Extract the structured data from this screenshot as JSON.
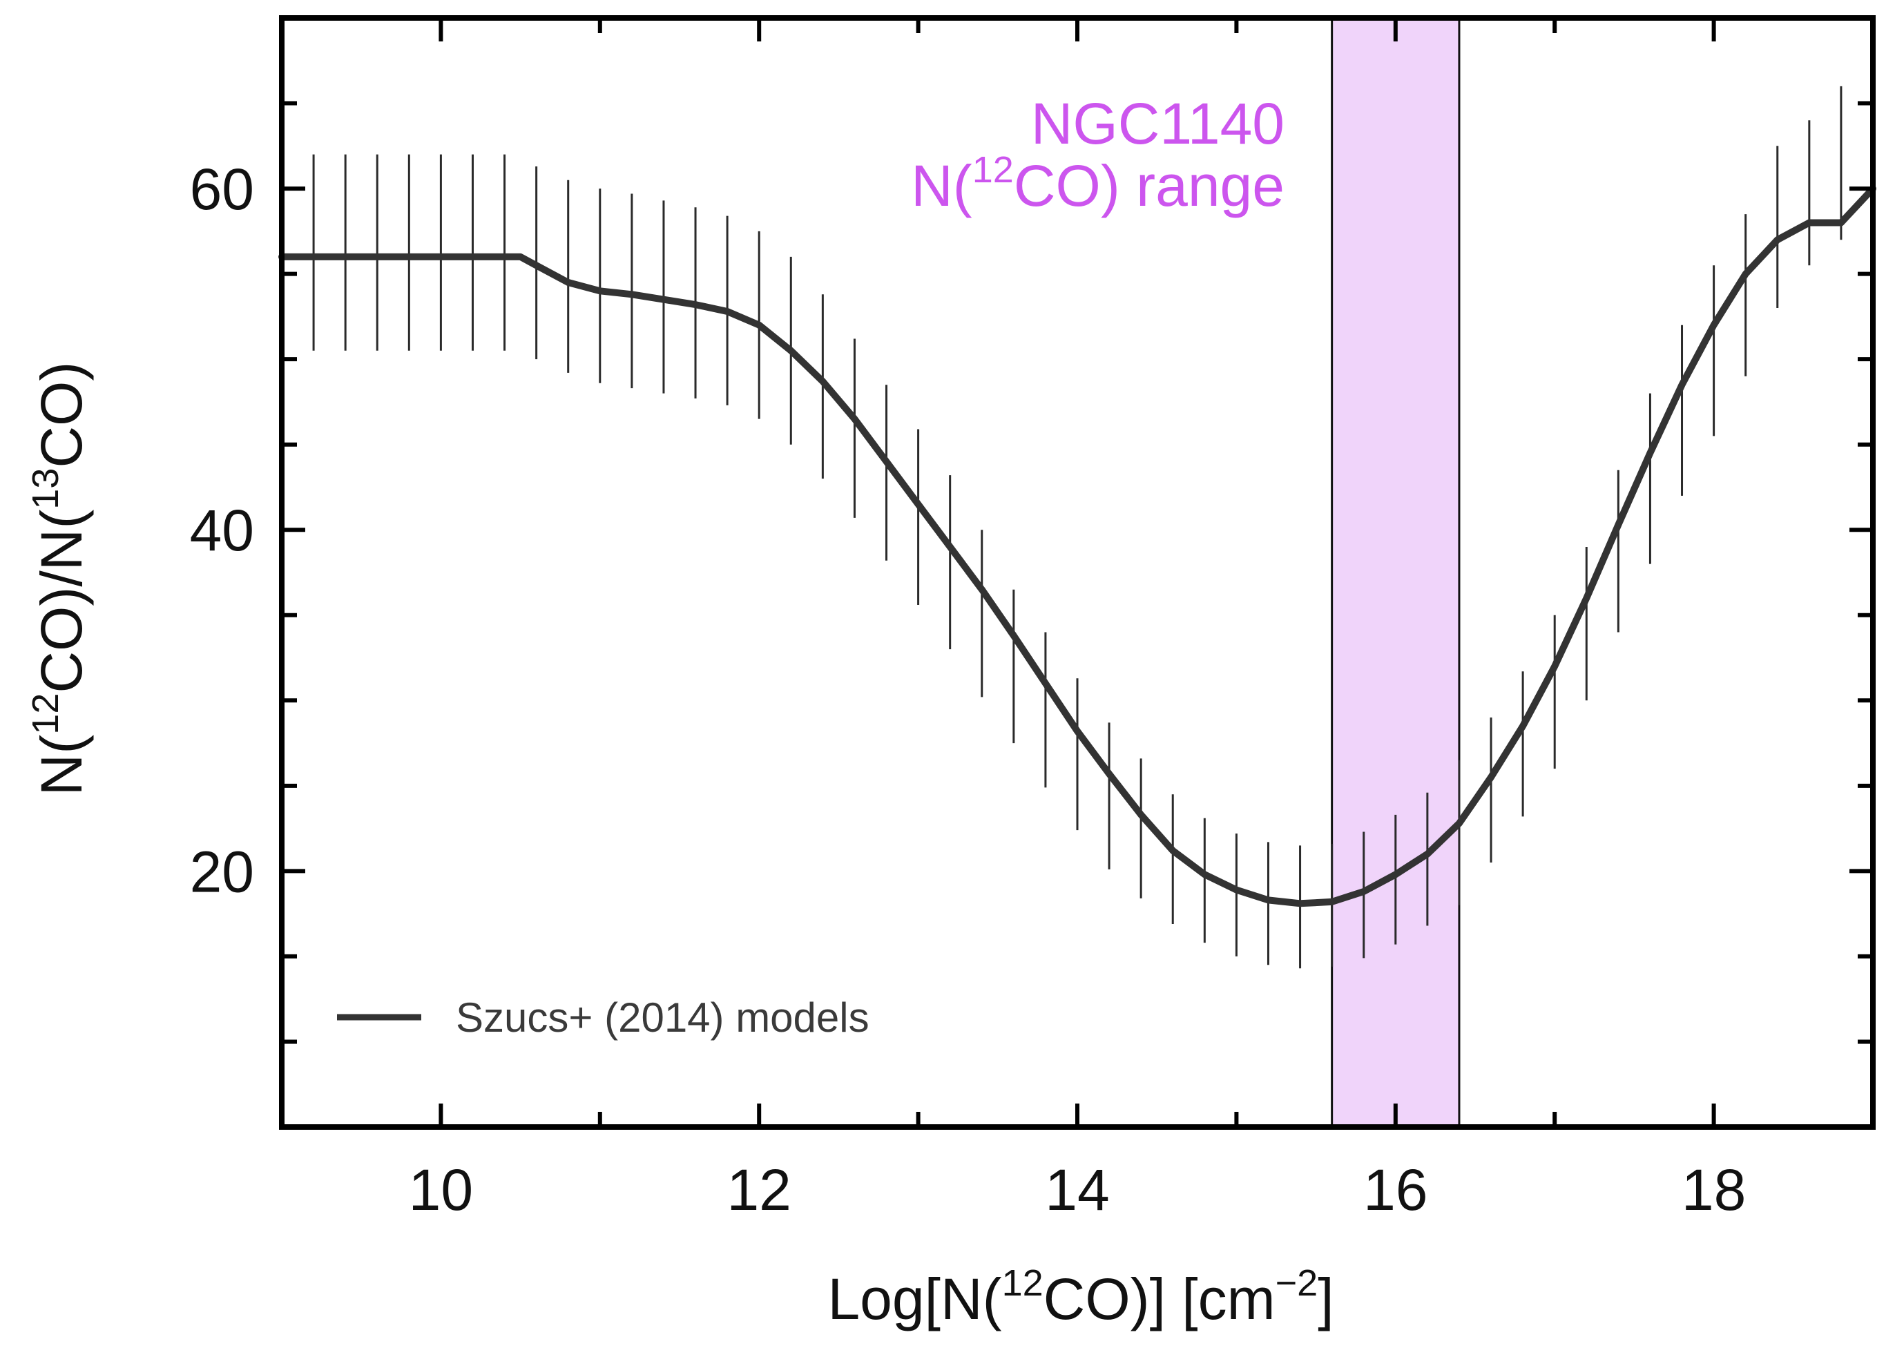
{
  "chart_data": {
    "type": "line",
    "xlabel_parts": [
      "Log[N(",
      "12",
      "CO)] [cm",
      "−2",
      "]"
    ],
    "ylabel_parts": [
      "N(",
      "12",
      "CO)/N(",
      "13",
      "CO)"
    ],
    "xlim": [
      9.0,
      19.0
    ],
    "ylim": [
      5.0,
      70.0
    ],
    "x_ticks": [
      10,
      12,
      14,
      16,
      18
    ],
    "x_tick_labels": [
      "10",
      "12",
      "14",
      "16",
      "18"
    ],
    "y_ticks": [
      20,
      40,
      60
    ],
    "y_tick_labels": [
      "20",
      "40",
      "60"
    ],
    "grid": false,
    "legend_position": "bottom-left",
    "legend_label": "Szucs+ (2014) models",
    "shaded_region": {
      "label_line1": "NGC1140",
      "label_line2_parts": [
        "N(",
        "12",
        "CO) range"
      ],
      "xmin": 15.6,
      "xmax": 16.4,
      "fill_color": "#f0d4fa",
      "label_color": "#cc55ee"
    },
    "series": [
      {
        "name": "Szucs+ (2014) models",
        "color": "#333333",
        "x": [
          9.0,
          9.2,
          9.5,
          10.0,
          10.5,
          10.6,
          10.8,
          11.0,
          11.2,
          11.4,
          11.6,
          11.8,
          12.0,
          12.2,
          12.4,
          12.6,
          12.8,
          13.0,
          13.2,
          13.4,
          13.6,
          13.8,
          14.0,
          14.2,
          14.4,
          14.6,
          14.8,
          15.0,
          15.2,
          15.4,
          15.6,
          15.8,
          16.0,
          16.2,
          16.4,
          16.6,
          16.8,
          17.0,
          17.2,
          17.4,
          17.6,
          17.8,
          18.0,
          18.2,
          18.4,
          18.6,
          18.78,
          18.8,
          19.0
        ],
        "y": [
          56,
          56,
          56,
          56,
          56,
          55.5,
          54.5,
          54.0,
          53.8,
          53.5,
          53.2,
          52.8,
          52.0,
          50.5,
          48.7,
          46.5,
          44.0,
          41.5,
          39.0,
          36.5,
          33.8,
          31.0,
          28.2,
          25.7,
          23.3,
          21.2,
          19.8,
          18.9,
          18.3,
          18.1,
          18.2,
          18.8,
          19.8,
          21.0,
          22.8,
          25.5,
          28.5,
          32.0,
          36.0,
          40.3,
          44.5,
          48.5,
          52.0,
          55.0,
          57.0,
          58.0,
          58.0,
          58.0,
          60.0
        ],
        "errorbars": {
          "x": [
            9.2,
            9.4,
            9.6,
            9.8,
            10.0,
            10.2,
            10.4,
            10.6,
            10.8,
            11.0,
            11.2,
            11.4,
            11.6,
            11.8,
            12.0,
            12.2,
            12.4,
            12.6,
            12.8,
            13.0,
            13.2,
            13.4,
            13.6,
            13.8,
            14.0,
            14.2,
            14.4,
            14.6,
            14.8,
            15.0,
            15.2,
            15.4,
            15.6,
            15.8,
            16.0,
            16.2,
            16.4,
            16.6,
            16.8,
            17.0,
            17.2,
            17.4,
            17.6,
            17.8,
            18.0,
            18.2,
            18.4,
            18.6,
            18.8
          ],
          "yhigh": [
            62,
            62,
            62,
            62,
            62,
            62,
            62,
            61.3,
            60.5,
            60.0,
            59.7,
            59.3,
            58.9,
            58.4,
            57.5,
            56.0,
            53.8,
            51.2,
            48.5,
            45.9,
            43.2,
            40.0,
            36.5,
            34.0,
            31.3,
            28.7,
            26.6,
            24.5,
            23.1,
            22.2,
            21.7,
            21.5,
            21.6,
            22.3,
            23.3,
            24.6,
            26.5,
            29.0,
            31.7,
            35.0,
            39.0,
            43.5,
            48.0,
            52.0,
            55.5,
            58.5,
            62.5,
            64.0,
            66.0
          ],
          "ylow": [
            50.5,
            50.5,
            50.5,
            50.5,
            50.5,
            50.5,
            50.5,
            50.0,
            49.2,
            48.6,
            48.3,
            48.0,
            47.7,
            47.3,
            46.5,
            45.0,
            43.0,
            40.7,
            38.2,
            35.6,
            33.0,
            30.2,
            27.5,
            24.9,
            22.4,
            20.1,
            18.4,
            16.9,
            15.8,
            15.0,
            14.5,
            14.3,
            14.4,
            14.9,
            15.7,
            16.8,
            18.0,
            20.5,
            23.2,
            26.0,
            30.0,
            34.0,
            38.0,
            42.0,
            45.5,
            49.0,
            53.0,
            55.5,
            57.0
          ]
        }
      }
    ]
  }
}
